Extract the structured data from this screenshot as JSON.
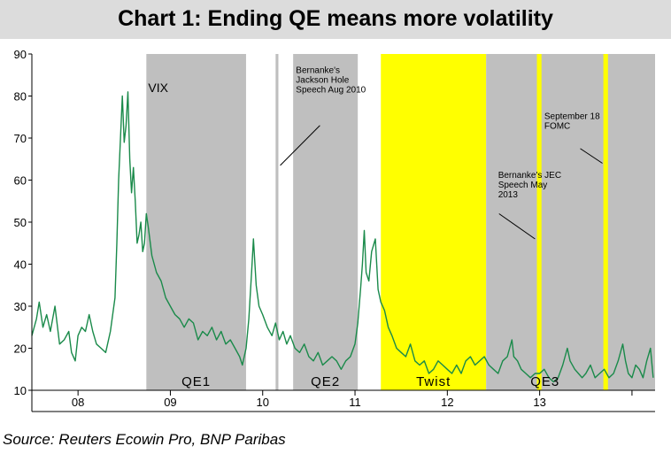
{
  "title": "Chart 1: Ending QE means more volatility",
  "source": "Source: Reuters Ecowin Pro, BNP Paribas",
  "chart_data": {
    "type": "line",
    "title": "Chart 1: Ending QE means more volatility",
    "xlabel": "",
    "ylabel": "",
    "ylim": [
      10,
      90
    ],
    "yticks": [
      "10",
      "20",
      "30",
      "40",
      "50",
      "60",
      "70",
      "80",
      "90"
    ],
    "xlim": [
      2007.5,
      2014.25
    ],
    "xticks": [
      {
        "label": "08",
        "x": 2008.0
      },
      {
        "label": "09",
        "x": 2009.0
      },
      {
        "label": "10",
        "x": 2010.0
      },
      {
        "label": "11",
        "x": 2011.0
      },
      {
        "label": "12",
        "x": 2012.0
      },
      {
        "label": "13",
        "x": 2013.0
      }
    ],
    "series": [
      {
        "name": "VIX",
        "color": "#1a8a4a",
        "points": [
          [
            2007.5,
            23
          ],
          [
            2007.55,
            27
          ],
          [
            2007.58,
            31
          ],
          [
            2007.62,
            25
          ],
          [
            2007.66,
            28
          ],
          [
            2007.7,
            24
          ],
          [
            2007.75,
            30
          ],
          [
            2007.8,
            21
          ],
          [
            2007.85,
            22
          ],
          [
            2007.9,
            24
          ],
          [
            2007.93,
            19
          ],
          [
            2007.97,
            17
          ],
          [
            2008.0,
            23
          ],
          [
            2008.04,
            25
          ],
          [
            2008.08,
            24
          ],
          [
            2008.12,
            28
          ],
          [
            2008.16,
            24
          ],
          [
            2008.2,
            21
          ],
          [
            2008.25,
            20
          ],
          [
            2008.3,
            19
          ],
          [
            2008.35,
            24
          ],
          [
            2008.4,
            32
          ],
          [
            2008.42,
            45
          ],
          [
            2008.44,
            60
          ],
          [
            2008.46,
            70
          ],
          [
            2008.48,
            80
          ],
          [
            2008.5,
            69
          ],
          [
            2008.52,
            73
          ],
          [
            2008.54,
            81
          ],
          [
            2008.56,
            65
          ],
          [
            2008.58,
            57
          ],
          [
            2008.6,
            63
          ],
          [
            2008.62,
            55
          ],
          [
            2008.64,
            45
          ],
          [
            2008.66,
            47
          ],
          [
            2008.68,
            50
          ],
          [
            2008.7,
            43
          ],
          [
            2008.72,
            45
          ],
          [
            2008.74,
            52
          ],
          [
            2008.76,
            49
          ],
          [
            2008.8,
            42
          ],
          [
            2008.85,
            38
          ],
          [
            2008.9,
            36
          ],
          [
            2008.95,
            32
          ],
          [
            2009.0,
            30
          ],
          [
            2009.05,
            28
          ],
          [
            2009.1,
            27
          ],
          [
            2009.15,
            25
          ],
          [
            2009.2,
            27
          ],
          [
            2009.25,
            26
          ],
          [
            2009.3,
            22
          ],
          [
            2009.35,
            24
          ],
          [
            2009.4,
            23
          ],
          [
            2009.45,
            25
          ],
          [
            2009.5,
            22
          ],
          [
            2009.55,
            24
          ],
          [
            2009.6,
            21
          ],
          [
            2009.65,
            22
          ],
          [
            2009.7,
            20
          ],
          [
            2009.75,
            18
          ],
          [
            2009.78,
            16
          ],
          [
            2009.82,
            20
          ],
          [
            2009.85,
            27
          ],
          [
            2009.88,
            38
          ],
          [
            2009.9,
            46
          ],
          [
            2009.93,
            35
          ],
          [
            2009.96,
            30
          ],
          [
            2010.0,
            28
          ],
          [
            2010.05,
            25
          ],
          [
            2010.1,
            23
          ],
          [
            2010.14,
            26
          ],
          [
            2010.18,
            22
          ],
          [
            2010.22,
            24
          ],
          [
            2010.26,
            21
          ],
          [
            2010.3,
            23
          ],
          [
            2010.35,
            20
          ],
          [
            2010.4,
            19
          ],
          [
            2010.45,
            21
          ],
          [
            2010.5,
            18
          ],
          [
            2010.55,
            17
          ],
          [
            2010.6,
            19
          ],
          [
            2010.65,
            16
          ],
          [
            2010.7,
            17
          ],
          [
            2010.75,
            18
          ],
          [
            2010.8,
            17
          ],
          [
            2010.85,
            15
          ],
          [
            2010.9,
            17
          ],
          [
            2010.95,
            18
          ],
          [
            2011.0,
            21
          ],
          [
            2011.03,
            26
          ],
          [
            2011.06,
            34
          ],
          [
            2011.08,
            40
          ],
          [
            2011.1,
            48
          ],
          [
            2011.12,
            38
          ],
          [
            2011.15,
            36
          ],
          [
            2011.18,
            43
          ],
          [
            2011.22,
            46
          ],
          [
            2011.25,
            34
          ],
          [
            2011.28,
            31
          ],
          [
            2011.32,
            29
          ],
          [
            2011.36,
            25
          ],
          [
            2011.4,
            23
          ],
          [
            2011.45,
            20
          ],
          [
            2011.5,
            19
          ],
          [
            2011.55,
            18
          ],
          [
            2011.6,
            21
          ],
          [
            2011.65,
            17
          ],
          [
            2011.7,
            16
          ],
          [
            2011.75,
            17
          ],
          [
            2011.8,
            14
          ],
          [
            2011.85,
            15
          ],
          [
            2011.9,
            17
          ],
          [
            2011.95,
            16
          ],
          [
            2012.0,
            15
          ],
          [
            2012.05,
            14
          ],
          [
            2012.1,
            16
          ],
          [
            2012.15,
            14
          ],
          [
            2012.2,
            17
          ],
          [
            2012.25,
            18
          ],
          [
            2012.3,
            16
          ],
          [
            2012.35,
            17
          ],
          [
            2012.4,
            18
          ],
          [
            2012.45,
            16
          ],
          [
            2012.5,
            15
          ],
          [
            2012.55,
            14
          ],
          [
            2012.6,
            17
          ],
          [
            2012.65,
            18
          ],
          [
            2012.7,
            22
          ],
          [
            2012.72,
            18
          ],
          [
            2012.76,
            17
          ],
          [
            2012.8,
            15
          ],
          [
            2012.85,
            14
          ],
          [
            2012.9,
            13
          ],
          [
            2012.95,
            14
          ],
          [
            2013.0,
            14
          ],
          [
            2013.05,
            15
          ],
          [
            2013.1,
            13
          ],
          [
            2013.15,
            12
          ],
          [
            2013.2,
            13
          ],
          [
            2013.25,
            16
          ],
          [
            2013.3,
            20
          ],
          [
            2013.33,
            17
          ],
          [
            2013.38,
            15
          ],
          [
            2013.42,
            14
          ],
          [
            2013.46,
            13
          ],
          [
            2013.5,
            14
          ],
          [
            2013.55,
            16
          ],
          [
            2013.6,
            13
          ],
          [
            2013.65,
            14
          ],
          [
            2013.7,
            15
          ],
          [
            2013.75,
            13
          ],
          [
            2013.8,
            14
          ],
          [
            2013.85,
            17
          ],
          [
            2013.9,
            21
          ],
          [
            2013.93,
            17
          ],
          [
            2013.96,
            14
          ],
          [
            2014.0,
            13
          ],
          [
            2014.04,
            16
          ],
          [
            2014.08,
            15
          ],
          [
            2014.12,
            13
          ],
          [
            2014.16,
            17
          ],
          [
            2014.2,
            20
          ],
          [
            2014.23,
            13
          ]
        ]
      }
    ],
    "shaded_regions": [
      {
        "label": "QE1",
        "x0": 2008.74,
        "x1": 2009.82,
        "color": "#bfbfbf"
      },
      {
        "label": "",
        "x0": 2010.14,
        "x1": 2010.17,
        "color": "#bfbfbf"
      },
      {
        "label": "QE2",
        "x0": 2010.33,
        "x1": 2011.03,
        "color": "#bfbfbf"
      },
      {
        "label": "Twist",
        "x0": 2011.28,
        "x1": 2012.42,
        "color": "#ffff00"
      },
      {
        "label": "QE3",
        "x0": 2012.42,
        "x1": 2014.25,
        "color": "#bfbfbf"
      },
      {
        "label": "",
        "x0": 2012.97,
        "x1": 2013.02,
        "color": "#ffff00"
      },
      {
        "label": "",
        "x0": 2013.69,
        "x1": 2013.74,
        "color": "#ffff00"
      }
    ],
    "annotations": [
      {
        "id": "vix",
        "lines": [
          "VIX"
        ]
      },
      {
        "id": "jackson",
        "lines": [
          "Bernanke's",
          "Jackson Hole",
          "Speech Aug 2010"
        ]
      },
      {
        "id": "fomc",
        "lines": [
          "September 18",
          "FOMC"
        ]
      },
      {
        "id": "jec",
        "lines": [
          "Bernanke's JEC",
          "Speech May",
          "2013"
        ]
      }
    ]
  }
}
